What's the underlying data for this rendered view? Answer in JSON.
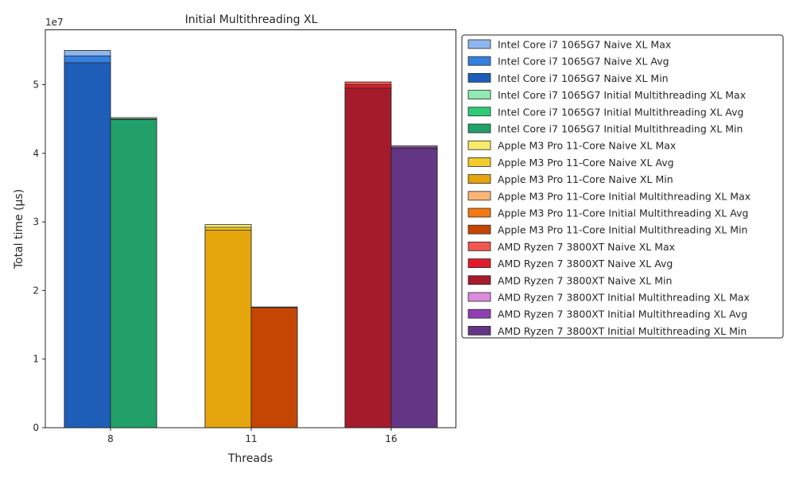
{
  "chart_data": {
    "type": "bar",
    "title": "Initial Multithreading XL",
    "xlabel": "Threads",
    "ylabel": "Total time (µs)",
    "y_scale_label": "1e7",
    "categories": [
      "8",
      "11",
      "16"
    ],
    "yticks": [
      0,
      1,
      2,
      3,
      4,
      5
    ],
    "ylim": [
      0,
      5.8
    ],
    "grid": false,
    "legend_position": "outside-right",
    "groups": [
      {
        "category": "8",
        "bars": [
          {
            "series": "Intel Core i7 1065G7 Naive XL",
            "max": 5.5,
            "avg": 5.42,
            "min": 5.32
          },
          {
            "series": "Intel Core i7 1065G7 Initial Multithreading XL",
            "max": 4.52,
            "avg": 4.5,
            "min": 4.49
          }
        ]
      },
      {
        "category": "11",
        "bars": [
          {
            "series": "Apple M3 Pro 11-Core Naive XL",
            "max": 2.96,
            "avg": 2.92,
            "min": 2.88
          },
          {
            "series": "Apple M3 Pro 11-Core Initial Multithreading XL",
            "max": 1.76,
            "avg": 1.755,
            "min": 1.75
          }
        ]
      },
      {
        "category": "16",
        "bars": [
          {
            "series": "AMD Ryzen 7 3800XT Naive XL",
            "max": 5.04,
            "avg": 5.0,
            "min": 4.95
          },
          {
            "series": "AMD Ryzen 7 3800XT Initial Multithreading XL",
            "max": 4.11,
            "avg": 4.09,
            "min": 4.07
          }
        ]
      }
    ],
    "legend": [
      {
        "label": "Intel Core i7 1065G7 Naive XL Max",
        "color": "#8fb6ee"
      },
      {
        "label": "Intel Core i7 1065G7 Naive XL Avg",
        "color": "#3580e0"
      },
      {
        "label": "Intel Core i7 1065G7 Naive XL Min",
        "color": "#1e5eb8"
      },
      {
        "label": "Intel Core i7 1065G7 Initial Multithreading XL Max",
        "color": "#8eeab0"
      },
      {
        "label": "Intel Core i7 1065G7 Initial Multithreading XL Avg",
        "color": "#2fcc78"
      },
      {
        "label": "Intel Core i7 1065G7 Initial Multithreading XL Min",
        "color": "#22a06a"
      },
      {
        "label": "Apple M3 Pro 11-Core Naive XL Max",
        "color": "#f8ec6a"
      },
      {
        "label": "Apple M3 Pro 11-Core Naive XL Avg",
        "color": "#f2cc2a"
      },
      {
        "label": "Apple M3 Pro 11-Core Naive XL Min",
        "color": "#e5a50c"
      },
      {
        "label": "Apple M3 Pro 11-Core Initial Multithreading XL Max",
        "color": "#fbb676"
      },
      {
        "label": "Apple M3 Pro 11-Core Initial Multithreading XL Avg",
        "color": "#f47912"
      },
      {
        "label": "Apple M3 Pro 11-Core Initial Multithreading XL Min",
        "color": "#c54603"
      },
      {
        "label": "AMD Ryzen 7 3800XT Naive XL Max",
        "color": "#f0584f"
      },
      {
        "label": "AMD Ryzen 7 3800XT Naive XL Avg",
        "color": "#e21c2c"
      },
      {
        "label": "AMD Ryzen 7 3800XT Naive XL Min",
        "color": "#a51b2b"
      },
      {
        "label": "AMD Ryzen 7 3800XT Initial Multithreading XL Max",
        "color": "#da8ddc"
      },
      {
        "label": "AMD Ryzen 7 3800XT Initial Multithreading XL Avg",
        "color": "#8f3fb2"
      },
      {
        "label": "AMD Ryzen 7 3800XT Initial Multithreading XL Min",
        "color": "#623585"
      }
    ]
  }
}
